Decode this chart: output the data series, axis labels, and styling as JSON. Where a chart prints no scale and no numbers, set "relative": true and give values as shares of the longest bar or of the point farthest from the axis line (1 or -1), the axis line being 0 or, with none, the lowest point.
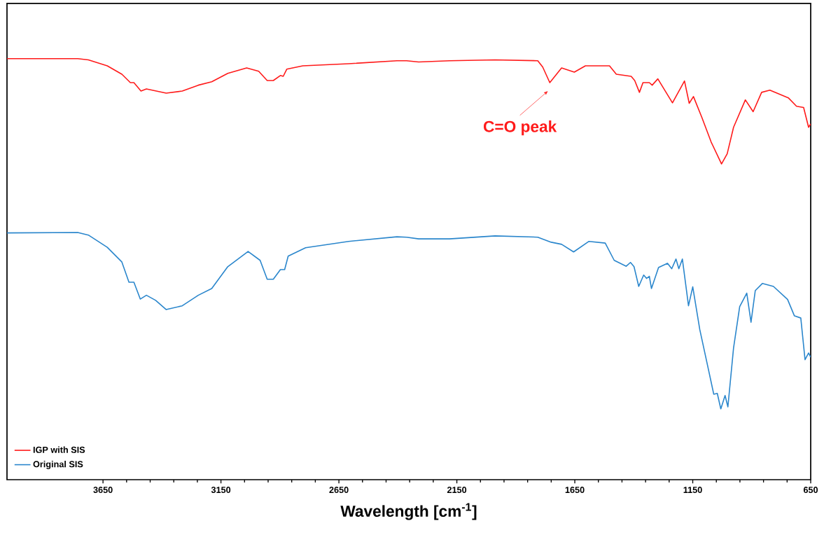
{
  "chart_data": {
    "type": "line",
    "relative": true,
    "xlabel": "Wavelength [cm$^{-1}$]",
    "xlim": [
      4057,
      650
    ],
    "xticks": [
      3650,
      3150,
      2650,
      2150,
      1650,
      1150,
      650
    ],
    "legend": "bottom left",
    "annotations": [
      {
        "text": "C=O peak",
        "x": 1756,
        "y": 0.943
      }
    ],
    "series": [
      {
        "name": "IGP with SIS",
        "color": "#ff1a1a",
        "x": [
          4057,
          3757,
          3712,
          3632,
          3570,
          3534,
          3519,
          3489,
          3466,
          3382,
          3314,
          3246,
          3189,
          3121,
          3041,
          2990,
          2954,
          2928,
          2898,
          2886,
          2871,
          2803,
          2609,
          2404,
          2363,
          2312,
          2181,
          1988,
          1807,
          1786,
          1756,
          1706,
          1652,
          1605,
          1503,
          1474,
          1411,
          1396,
          1376,
          1361,
          1334,
          1322,
          1298,
          1236,
          1185,
          1165,
          1147,
          1111,
          1072,
          1028,
          1004,
          977,
          927,
          894,
          858,
          823,
          745,
          710,
          680,
          659,
          650
        ],
        "values": [
          1.0,
          1.0,
          0.997,
          0.983,
          0.963,
          0.943,
          0.943,
          0.923,
          0.928,
          0.918,
          0.923,
          0.937,
          0.945,
          0.965,
          0.978,
          0.97,
          0.948,
          0.948,
          0.96,
          0.958,
          0.975,
          0.983,
          0.988,
          0.995,
          0.995,
          0.992,
          0.995,
          0.997,
          0.995,
          0.98,
          0.943,
          0.978,
          0.968,
          0.983,
          0.983,
          0.963,
          0.958,
          0.948,
          0.92,
          0.943,
          0.943,
          0.937,
          0.952,
          0.895,
          0.947,
          0.894,
          0.91,
          0.86,
          0.802,
          0.75,
          0.774,
          0.837,
          0.902,
          0.874,
          0.92,
          0.925,
          0.907,
          0.887,
          0.884,
          0.837,
          0.845
        ]
      },
      {
        "name": "Original SIS",
        "color": "#2a86cc",
        "x": [
          4057,
          3757,
          3712,
          3632,
          3570,
          3540,
          3519,
          3492,
          3466,
          3427,
          3382,
          3314,
          3246,
          3189,
          3121,
          3035,
          2984,
          2954,
          2928,
          2898,
          2880,
          2865,
          2791,
          2609,
          2404,
          2363,
          2312,
          2181,
          1988,
          1807,
          1750,
          1706,
          1655,
          1590,
          1521,
          1483,
          1432,
          1414,
          1399,
          1379,
          1358,
          1346,
          1334,
          1325,
          1295,
          1257,
          1239,
          1221,
          1209,
          1194,
          1168,
          1150,
          1120,
          1084,
          1061,
          1046,
          1031,
          1013,
          1001,
          977,
          951,
          921,
          903,
          885,
          855,
          808,
          748,
          719,
          692,
          674,
          659,
          650
        ],
        "values": [
          0.586,
          0.587,
          0.581,
          0.552,
          0.517,
          0.469,
          0.469,
          0.429,
          0.438,
          0.426,
          0.404,
          0.413,
          0.438,
          0.454,
          0.506,
          0.542,
          0.521,
          0.476,
          0.476,
          0.499,
          0.499,
          0.531,
          0.551,
          0.566,
          0.577,
          0.576,
          0.572,
          0.572,
          0.579,
          0.576,
          0.564,
          0.559,
          0.541,
          0.566,
          0.562,
          0.521,
          0.507,
          0.516,
          0.506,
          0.459,
          0.486,
          0.478,
          0.483,
          0.454,
          0.504,
          0.514,
          0.501,
          0.524,
          0.501,
          0.524,
          0.413,
          0.458,
          0.356,
          0.263,
          0.203,
          0.205,
          0.168,
          0.2,
          0.173,
          0.313,
          0.411,
          0.443,
          0.374,
          0.449,
          0.466,
          0.459,
          0.428,
          0.389,
          0.384,
          0.285,
          0.301,
          0.291
        ]
      }
    ]
  }
}
